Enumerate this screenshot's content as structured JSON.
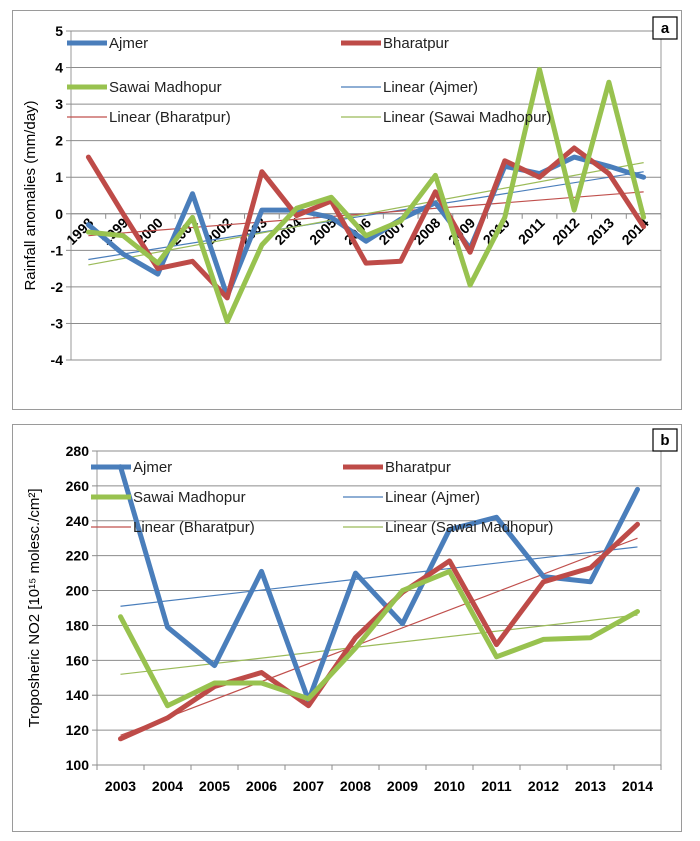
{
  "chart_data": [
    {
      "panel_label": "a",
      "type": "line",
      "ylabel": "Rainfall anomalies (mm/day)",
      "ylim": [
        -4,
        5
      ],
      "yticks": [
        -4,
        -3,
        -2,
        -1,
        0,
        1,
        2,
        3,
        4,
        5
      ],
      "categories": [
        "1998",
        "1999",
        "2000",
        "2001",
        "2002",
        "2003",
        "2004",
        "2005",
        "2006",
        "2007",
        "2008",
        "2009",
        "2010",
        "2011",
        "2012",
        "2013",
        "2014"
      ],
      "grid": true,
      "series": [
        {
          "name": "Ajmer",
          "color": "#4a7ebb",
          "values": [
            -0.3,
            -1.1,
            -1.65,
            0.55,
            -2.25,
            0.1,
            0.1,
            -0.1,
            -0.75,
            -0.15,
            0.3,
            -0.95,
            1.3,
            1.1,
            1.55,
            1.3,
            1.0
          ]
        },
        {
          "name": "Bharatpur",
          "color": "#be4b48",
          "values": [
            1.55,
            0.0,
            -1.5,
            -1.3,
            -2.3,
            1.15,
            -0.05,
            0.35,
            -1.35,
            -1.3,
            0.6,
            -1.05,
            1.45,
            1.0,
            1.8,
            1.1,
            -0.35
          ]
        },
        {
          "name": "Sawai Madhopur",
          "color": "#98c24f",
          "values": [
            -0.5,
            -0.6,
            -1.35,
            -0.1,
            -2.95,
            -0.85,
            0.15,
            0.45,
            -0.6,
            -0.2,
            1.05,
            -1.95,
            -0.1,
            3.95,
            0.1,
            3.6,
            -0.1
          ]
        }
      ],
      "trendlines": [
        {
          "name": "Linear (Ajmer)",
          "color": "#4a7ebb",
          "values": [
            -1.25,
            1.15
          ]
        },
        {
          "name": "Linear (Bharatpur)",
          "color": "#c0504d",
          "values": [
            -0.6,
            0.6
          ]
        },
        {
          "name": "Linear (Sawai Madhopur)",
          "color": "#9bbb59",
          "values": [
            -1.4,
            1.4
          ]
        }
      ]
    },
    {
      "panel_label": "b",
      "type": "line",
      "ylabel": "Troposheric NO2 [10¹⁵ molesc./cm²]",
      "ylim": [
        100,
        280
      ],
      "yticks": [
        100,
        120,
        140,
        160,
        180,
        200,
        220,
        240,
        260,
        280
      ],
      "categories": [
        "2003",
        "2004",
        "2005",
        "2006",
        "2007",
        "2008",
        "2009",
        "2010",
        "2011",
        "2012",
        "2013",
        "2014"
      ],
      "grid": true,
      "series": [
        {
          "name": "Ajmer",
          "color": "#4a7ebb",
          "values": [
            271,
            179,
            157,
            211,
            137,
            210,
            181,
            235,
            242,
            208,
            205,
            258
          ]
        },
        {
          "name": "Bharatpur",
          "color": "#be4b48",
          "values": [
            115,
            127,
            145,
            153,
            134,
            173,
            199,
            217,
            169,
            205,
            213,
            238
          ]
        },
        {
          "name": "Sawai Madhopur",
          "color": "#98c24f",
          "values": [
            185,
            134,
            147,
            147,
            138,
            167,
            200,
            211,
            162,
            172,
            173,
            188
          ]
        }
      ],
      "trendlines": [
        {
          "name": "Linear (Ajmer)",
          "color": "#4a7ebb",
          "values": [
            191,
            225
          ]
        },
        {
          "name": "Linear (Bharatpur)",
          "color": "#c0504d",
          "values": [
            117,
            230
          ]
        },
        {
          "name": "Linear (Sawai Madhopur)",
          "color": "#9bbb59",
          "values": [
            152,
            186
          ]
        }
      ]
    }
  ]
}
